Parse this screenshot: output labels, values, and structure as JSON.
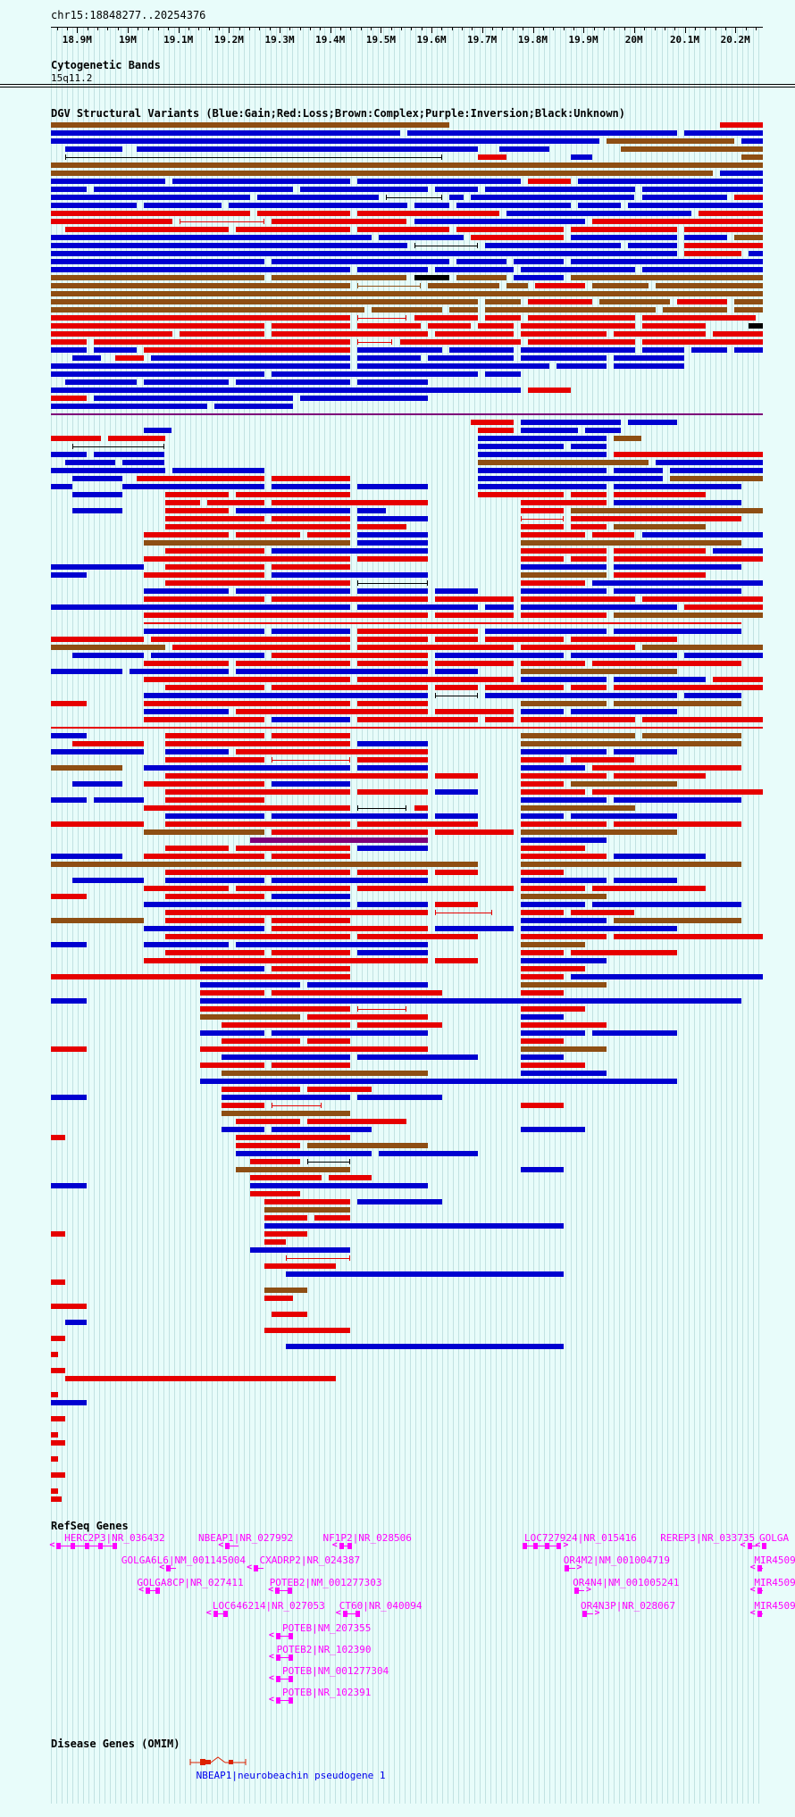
{
  "header": {
    "region": "chr15:18848277..20254376"
  },
  "ruler": {
    "start_bp": 18848277,
    "span_bp": 1406099,
    "minor_step_bp": 20000,
    "ticks": [
      {
        "label": "18.9M",
        "f": 0.0368
      },
      {
        "label": "19M",
        "f": 0.1079
      },
      {
        "label": "19.1M",
        "f": 0.179
      },
      {
        "label": "19.2M",
        "f": 0.2501
      },
      {
        "label": "19.3M",
        "f": 0.3213
      },
      {
        "label": "19.4M",
        "f": 0.3924
      },
      {
        "label": "19.5M",
        "f": 0.4635
      },
      {
        "label": "19.6M",
        "f": 0.5346
      },
      {
        "label": "19.7M",
        "f": 0.6057
      },
      {
        "label": "19.8M",
        "f": 0.6768
      },
      {
        "label": "19.9M",
        "f": 0.7479
      },
      {
        "label": "20M",
        "f": 0.819
      },
      {
        "label": "20.1M",
        "f": 0.8902
      },
      {
        "label": "20.2M",
        "f": 0.9613
      }
    ]
  },
  "cytobands": {
    "title": "Cytogenetic Bands",
    "band": "15q11.2"
  },
  "dgv": {
    "title": "DGV Structural Variants (Blue:Gain;Red:Loss;Brown:Complex;Purple:Inversion;Black:Unknown)",
    "palette": {
      "b": "#0000d0",
      "r": "#e60000",
      "n": "#8e4e13",
      "p": "#7d0079",
      "k": "#000000"
    },
    "legend": {
      "Blue": "Gain",
      "Red": "Loss",
      "Brown": "Complex",
      "Purple": "Inversion",
      "Black": "Unknown"
    }
  },
  "chart_data": {
    "type": "bar",
    "title": "DGV Structural Variants",
    "xlabel": "chr15 position (bp)",
    "x_range": [
      18848277,
      20254376
    ],
    "legend_position": "in-title",
    "grid": true,
    "row_note": "each row string = one track row; segments 'color startFrac endFrac' (~=whisker, _=thin line); colors b=gain r=loss n=complex p=inversion k=unknown",
    "rows": [
      "n 0 .56,r .94 1",
      "b 0 .49,b .5 .88,b .89 1",
      "b 0 .77,n .78 .96,b .97 1",
      "b .02 .1,b .12 .6,b .63 .7,n .8 1",
      "~k .02 .55,r .6 .64,b .73 .76,n .97 1",
      "n 0 1",
      "n 0 .93,b .94 1",
      "b 0 .16,b .17 .42,b .43 .66,r .67 .73,b .74 1",
      "b 0 .05,b .06 .34,b .35 .53,b .54 .6,b .61 .82,b .83 1",
      "b 0 .28,b .29 .46,~k .47 .55,b .56 .58,b .59 .82,b .83 .95,r .96 1",
      "b 0 .12,b .13 .24,b .25 .5,b .51 .56,b .57 .73,b .74 .8,b .81 1",
      "r 0 .28,r .29 .42,r .43 .63,b .64 .9,r .91 1",
      "r 0 .17,~r .18 .3,r .31 .5,b .51 .75,r .76 1",
      "r .02 .25,r .26 .42,r .43 .56,r .57 .72,r .73 .88,r .89 1",
      "b 0 .45,b .46 .58,r .59 .72,b .73 .88,b .89 .95,n .96 1",
      "b 0 .5,~k .51 .6,b .61 .8,b .81 .88,r .89 1",
      "b 0 .88,r .89 .97,b .98 1",
      "b 0 .3,b .31 .56,b .57 .64,b .65 .72,b .73 1",
      "b 0 .42,b .43 .53,b .54 .65,b .66 .82,b .83 1",
      "n 0 .3,n .31 .5,k .51 .56,n .57 .64,b .65 .72,n .73 1",
      "n 0 .42,~n .43 .52,n .53 .63,n .64 .67,r .68 .75,n .76 .84,n .85 1",
      "n 0 1",
      "n 0 .6,n .61 .66,r .67 .76,n .77 .87,r .88 .95,n .96 1",
      "n 0 .44,n .45 .55,n .56 .6,n .61 .85,n .86 .95,n .96 1",
      "r 0 .42,~r .43 .5,r .51 .6,r .61 .66,r .67 .82,r .83 .99",
      "r 0 .3,r .31 .42,r .43 .52,r .53 .59,r .6 .65,r .66 .82,r .83 .92,k .98 1",
      "r 0 .17,r .18 .3,r .31 .53,r .54 .65,r .66 .78,r .79 .92,r .93 1",
      "r 0 .05,r .06 .42,~r .43 .48,r .49 .66,r .67 .82,r .83 1",
      "b 0 .05,b .06 .12,r .13 .42,b .43 .55,b .56 .65,b .66 .82,b .83 .89,b .9 .95,b .96 1",
      "b .03 .07,r .09 .13,b .14 .42,b .43 .52,b .53 .65,b .66 .78,b .79 .89",
      "b 0 .42,b .43 .7,b .71 .78,b .79 .89",
      "b 0 .3,b .31 .6,b .61 .66",
      "b .02 .12,b .13 .25,b .26 .42,b .43 .53",
      "b 0 .66,r .67 .73",
      "r 0 .05,b .06 .34,b .35 .53",
      "b 0 .22,b .23 .34",
      "_p 0 1",
      "r .59 .65,b .66 .8,b .81 .88",
      "b .13 .17,r .6 .65,b .66 .74,b .75 .8",
      "r 0 .07,r .08 .16,b .6 .78,n .79 .83",
      "~k .03 .16,b .6 .72,b .73 .78",
      "b 0 .05,b .06 .16,b .6 .78,r .79 1",
      "b .02 .09,b .1 .16,n .6 .84,b .85 1",
      "b 0 .16,b .17 .3,b .6 .78,b .79 .86,b .87 1",
      "b .03 .1,r .12 .3,r .31 .42,b .6 .86,n .87 1",
      "b 0 .03,b .1 .3,b .31 .42,b .43 .53,b .6 .78,b .79 .97",
      "b .03 .1,r .16 .25,r .26 .42,r .6 .72,r .73 .78,r .79 .92",
      "r .16 .21,r .22 .3,r .31 .53,r .66 .78,b .79 .97",
      "b .03 .1,r .16 .25,b .26 .42,b .43 .47,r .66 .72,n .73 1",
      "r .16 .3,r .31 .42,b .43 .53,~r .66 .72,r .73 .97",
      "r .16 .42,r .43 .5,r .66 .72,r .73 .78,n .79 .92",
      "r .13 .25,r .26 .35,r .36 .42,b .43 .53,r .66 .75,r .76 .82,b .83 1",
      "n .13 .42,b .43 .53,n .66 .97",
      "r .16 .3,b .31 .53,r .66 .78,r .79 .92,b .93 1",
      "r .13 .42,r .43 .53,r .66 .72,r .73 .78,r .79 1",
      "b 0 .13,r .16 .3,r .31 .42,b .66 .78,b .79 .97",
      "b 0 .05,r .13 .3,b .31 .53,n .66 .78,r .79 .92",
      "r .16 .42,~k .43 .53,r .66 .75,b .76 1",
      "b .13 .25,b .26 .42,b .43 .53,b .54 .6,b .66 .78,b .79 .97",
      "r .13 .3,r .31 .53,r .54 .65,r .66 .82,r .83 1",
      "b 0 .42,b .43 .6,b .61 .65,b .66 .88,r .89 1",
      "r .13 .53,r .54 .65,r .66 .78,n .79 1",
      "_r .13 .97",
      "b .13 .3,b .31 .42,r .43 .6,b .61 .78,b .79 .97",
      "r 0 .13,r .14 .42,r .43 .53,r .54 .6,r .61 .72,r .73 .88",
      "n 0 .16,r .17 .42,r .43 .65,r .66 .82,n .83 1",
      "b .03 .13,b .14 .3,r .31 .53,b .54 .72,b .73 .88,b .89 1",
      "r .13 .25,r .26 .42,r .43 .53,r .54 .65,r .66 .75,r .76 .97",
      "b 0 .1,b .11 .25,b .26 .53,b .54 .6,n .66 .88",
      "r .13 .42,r .43 .65,b .66 .78,b .79 .92,r .93 1",
      "r .16 .3,r .31 .53,r .54 .6,r .61 .72,r .73 .78,r .79 1",
      "b .13 .53,~k .54 .6,b .61 .88,b .89 .97",
      "r 0 .05,r .13 .42,r .43 .53,n .66 .78,n .79 .97",
      "b .13 .25,r .26 .53,r .54 .65,b .66 .72,b .73 .88",
      "r .13 .3,b .31 .42,r .43 .6,r .61 .65,r .66 .82,r .83 1",
      "_r 0 1",
      "b 0 .05,r .16 .3,r .31 .42,n .66 .82,n .83 .97",
      "r .03 .13,r .16 .42,b .43 .53,n .66 .97",
      "b 0 .13,b .16 .25,r .26 .53,b .66 .78,b .79 .88",
      "r .16 .3,~r .31 .42,r .43 .53,r .66 .72,r .73 .82",
      "n 0 .1,b .13 .42,b .43 .53,b .66 .75,r .76 .97",
      "r .16 .53,r .54 .6,r .66 .78,r .79 .92",
      "b .03 .1,r .13 .3,b .31 .42,r .66 .72,n .73 .88",
      "r .16 .42,r .43 .53,b .54 .6,r .66 .75,r .76 1",
      "b 0 .05,b .06 .13,r .16 .3,b .66 .78,b .79 .97",
      "r .13 .42,~k .43 .5,r .51 .53,n .66 .82",
      "b .16 .3,b .31 .53,b .54 .6,b .66 .72,b .73 .88",
      "r 0 .13,r .16 .42,r .43 .6,r .66 .78,r .79 .97",
      "n .13 .3,r .31 .53,r .54 .65,n .66 .88",
      "p .28 .53,b .66 .78",
      "r .16 .25,r .26 .42,b .43 .53,r .66 .75",
      "b 0 .1,r .13 .3,r .31 .42,r .66 .78,b .79 .92",
      "n 0 .6,n .66 .97",
      "r .16 .42,r .43 .53,r .54 .6,r .66 .72",
      "b .03 .13,b .16 .3,b .31 .53,b .66 .78,b .79 .88",
      "r .13 .25,r .26 .42,r .43 .65,r .66 .75,r .76 .92",
      "r 0 .05,r .16 .3,b .31 .42,n .66 .78",
      "b .13 .42,b .43 .53,r .54 .6,b .66 .75,b .76 .97",
      "r .16 .53,~r .54 .62,r .66 .72,r .73 .82",
      "n 0 .13,r .16 .3,r .31 .42,b .66 .78,n .79 .97",
      "b .13 .3,r .31 .53,b .54 .65,b .66 .88",
      "r .16 .42,r .43 .6,r .66 .78,r .79 1",
      "b 0 .05,b .13 .25,b .26 .53,n .66 .75",
      "r .16 .3,r .31 .42,b .43 .53,r .66 .72,r .73 .88",
      "r .13 .53,r .54 .6,b .66 .78",
      "b .21 .3,r .31 .42,r .66 .75",
      "r 0 .42,r .66 .72,b .73 1",
      "b .21 .35,b .36 .53,n .66 .78",
      "r .21 .3,r .31 .55,r .66 .72",
      "b 0 .05,b .21 .97",
      "r .21 .42,~r .43 .5,r .66 .75",
      "n .21 .35,r .36 .53,b .66 .72",
      "r .24 .42,r .43 .55,r .66 .78",
      "b .21 .3,b .31 .53,b .66 .75,b .76 .88",
      "r .24 .35,r .36 .42,r .66 .72",
      "r 0 .05,r .21 .53,n .66 .78",
      "b .24 .42,b .43 .6,b .66 .72",
      "r .21 .3,r .31 .42,r .66 .75",
      "n .24 .53,b .66 .78",
      "b .21 .88",
      "r .24 .35,r .36 .45",
      "b 0 .05,b .24 .42,b .43 .55",
      "r .24 .3,~r .31 .38,r .66 .72",
      "n .24 .42",
      "r .26 .35,r .36 .5",
      "b .24 .3,b .31 .45,b .66 .75",
      "r 0 .02,r .26 .42",
      "r .26 .35,n .36 .53",
      "b .26 .45,b .46 .6",
      "r .28 .35,~k .36 .42",
      "n .26 .42,b .66 .72",
      "r .28 .38,r .39 .45",
      "b 0 .05,b .28 .53",
      "r .28 .35",
      "r .3 .42,b .43 .55",
      "n .3 .42",
      "r .3 .36,r .37 .42",
      "b .3 .72",
      "r 0 .02,r .3 .36",
      "r .3 .33",
      "b .28 .42",
      "~r .33 .42",
      "r .3 .4",
      "b .33 .72",
      "r 0 .02",
      "n .3 .36",
      "r .3 .34",
      "r 0 .05",
      "r .31 .36",
      "b .02 .05",
      "r .3 .42",
      "r 0 .02",
      "b .33 .72",
      "r 0 .01",
      "",
      "r 0 .02",
      "r .02 .4",
      "",
      "r 0 .01",
      "b 0 .05",
      "",
      "r 0 .02",
      "",
      "r 0 .01",
      "r 0 .02",
      "",
      "r 0 .01",
      "",
      "r 0 .02",
      "",
      "r 0 .01",
      "r 0 .015"
    ]
  },
  "refseq": {
    "title": "RefSeq Genes",
    "color": "#ff00ff",
    "genes": [
      {
        "label": "HERC2P3|NR_036432",
        "row": 0,
        "lx": 0.019,
        "gx": 0.008,
        "gw": 0.085,
        "boxes": 5,
        "dir": "left"
      },
      {
        "label": "NBEAP1|NR_027992",
        "row": 0,
        "lx": 0.207,
        "gx": 0.245,
        "gw": 0.018,
        "boxes": 1,
        "dir": "left"
      },
      {
        "label": "NF1P2|NR_028506",
        "row": 0,
        "lx": 0.382,
        "gx": 0.405,
        "gw": 0.018,
        "boxes": 2,
        "dir": "left"
      },
      {
        "label": "LOC727924|NR_015416",
        "row": 0,
        "lx": 0.665,
        "gx": 0.662,
        "gw": 0.055,
        "boxes": 4,
        "dir": "right"
      },
      {
        "label": "REREP3|NR_033735",
        "row": 0,
        "lx": 0.856,
        "gx": 0.978,
        "gw": 0.014,
        "boxes": 1,
        "dir": "left"
      },
      {
        "label": "GOLGA",
        "row": 0,
        "lx": 0.995,
        "gx": 0.999,
        "gw": 0.006,
        "boxes": 1,
        "dir": "left"
      },
      {
        "label": "GOLGA6L6|NM_001145004",
        "row": 1,
        "lx": 0.099,
        "gx": 0.162,
        "gw": 0.014,
        "boxes": 1,
        "dir": "left"
      },
      {
        "label": "CXADRP2|NR_024387",
        "row": 1,
        "lx": 0.293,
        "gx": 0.285,
        "gw": 0.014,
        "boxes": 1,
        "dir": "left"
      },
      {
        "label": "OR4M2|NM_001004719",
        "row": 1,
        "lx": 0.72,
        "gx": 0.722,
        "gw": 0.014,
        "boxes": 1,
        "dir": "right"
      },
      {
        "label": "MIR4509-",
        "row": 1,
        "lx": 0.988,
        "gx": 0.992,
        "gw": 0.008,
        "boxes": 1,
        "dir": "left"
      },
      {
        "label": "GOLGA8CP|NR_027411",
        "row": 2,
        "lx": 0.121,
        "gx": 0.133,
        "gw": 0.02,
        "boxes": 2,
        "dir": "left"
      },
      {
        "label": "POTEB2|NM_001277303",
        "row": 2,
        "lx": 0.307,
        "gx": 0.315,
        "gw": 0.024,
        "boxes": 2,
        "dir": "left"
      },
      {
        "label": "OR4N4|NM_001005241",
        "row": 2,
        "lx": 0.733,
        "gx": 0.735,
        "gw": 0.014,
        "boxes": 1,
        "dir": "right"
      },
      {
        "label": "MIR4509-",
        "row": 2,
        "lx": 0.988,
        "gx": 0.992,
        "gw": 0.008,
        "boxes": 1,
        "dir": "left"
      },
      {
        "label": "LOC646214|NR_027053",
        "row": 3,
        "lx": 0.227,
        "gx": 0.228,
        "gw": 0.02,
        "boxes": 2,
        "dir": "left"
      },
      {
        "label": "CT60|NR_040094",
        "row": 3,
        "lx": 0.405,
        "gx": 0.41,
        "gw": 0.024,
        "boxes": 2,
        "dir": "left"
      },
      {
        "label": "OR4N3P|NR_028067",
        "row": 3,
        "lx": 0.744,
        "gx": 0.747,
        "gw": 0.014,
        "boxes": 1,
        "dir": "right"
      },
      {
        "label": "MIR4509-",
        "row": 3,
        "lx": 0.988,
        "gx": 0.992,
        "gw": 0.008,
        "boxes": 1,
        "dir": "left"
      },
      {
        "label": "POTEB|NM_207355",
        "row": 4,
        "lx": 0.325,
        "gx": 0.316,
        "gw": 0.024,
        "boxes": 2,
        "dir": "left"
      },
      {
        "label": "POTEB2|NR_102390",
        "row": 5,
        "lx": 0.317,
        "gx": 0.316,
        "gw": 0.024,
        "boxes": 2,
        "dir": "left"
      },
      {
        "label": "POTEB|NM_001277304",
        "row": 6,
        "lx": 0.325,
        "gx": 0.316,
        "gw": 0.024,
        "boxes": 2,
        "dir": "left"
      },
      {
        "label": "POTEB|NR_102391",
        "row": 7,
        "lx": 0.325,
        "gx": 0.316,
        "gw": 0.024,
        "boxes": 2,
        "dir": "left"
      }
    ]
  },
  "omim": {
    "title": "Disease Genes (OMIM)",
    "gene": {
      "label": "NBEAP1|neurobeachin pseudogene 1",
      "lx": 0.204,
      "gx": 0.195,
      "glyph_color": "#dd2200",
      "label_color": "#0000ee"
    }
  }
}
